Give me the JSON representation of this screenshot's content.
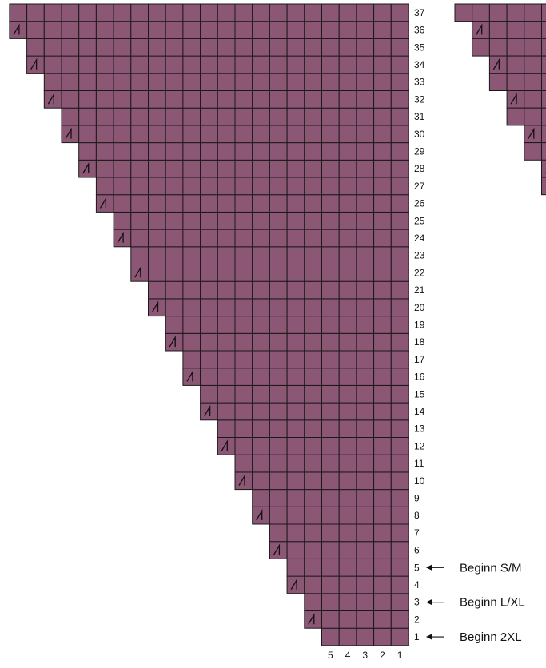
{
  "chart_color": "#8c5675",
  "left_chart": {
    "total_rows": 37,
    "bottom_row_stitches": 5,
    "increase_every_rows": 2,
    "increase_symbol": "slanted-decrease-icon",
    "row_numbers": [
      "1",
      "2",
      "3",
      "4",
      "5",
      "6",
      "7",
      "8",
      "9",
      "10",
      "11",
      "12",
      "13",
      "14",
      "15",
      "16",
      "17",
      "18",
      "19",
      "20",
      "21",
      "22",
      "23",
      "24",
      "25",
      "26",
      "27",
      "28",
      "29",
      "30",
      "31",
      "32",
      "33",
      "34",
      "35",
      "36",
      "37"
    ],
    "column_numbers": [
      "5",
      "4",
      "3",
      "2",
      "1"
    ]
  },
  "right_chart": {
    "visible_rows": 12,
    "partial": true
  },
  "size_markers": [
    {
      "row": 5,
      "label": "Beginn S/M"
    },
    {
      "row": 3,
      "label": "Beginn L/XL"
    },
    {
      "row": 1,
      "label": "Beginn 2XL"
    }
  ]
}
